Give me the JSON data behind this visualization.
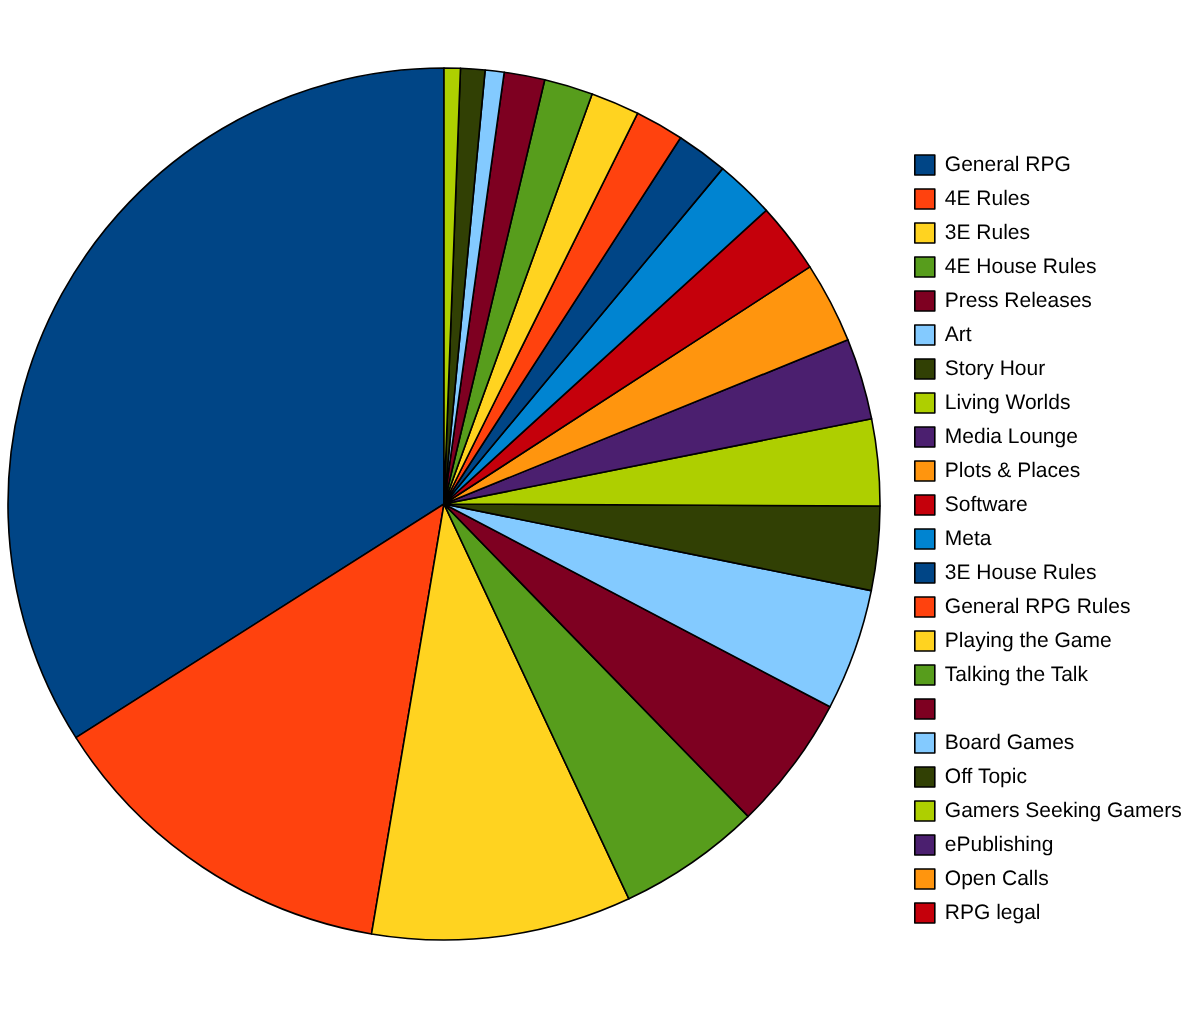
{
  "chart_data": {
    "type": "pie",
    "categories": [
      "General RPG",
      "4E Rules",
      "3E Rules",
      "4E House Rules",
      "Press Releases",
      "Art",
      "Story Hour",
      "Living Worlds",
      "Media Lounge",
      "Plots & Places",
      "Software",
      "Meta",
      "3E House Rules",
      "General RPG Rules",
      "Playing the Game",
      "Talking the Talk",
      null,
      "Board Games",
      "Off Topic",
      "Gamers Seeking Gamers",
      "ePublishing",
      "Open Calls",
      "RPG legal"
    ],
    "values": [
      33.9,
      13.3,
      9.6,
      5.3,
      5.0,
      4.5,
      3.1,
      3.2,
      3.0,
      3.0,
      2.6,
      2.2,
      1.9,
      1.8,
      1.8,
      1.8,
      1.5,
      0.7,
      0.9,
      0.6,
      null,
      null,
      null
    ],
    "colors": [
      "#004586",
      "#ff420e",
      "#ffd320",
      "#579d1c",
      "#7e0021",
      "#83caff",
      "#314004",
      "#aecf00",
      "#4b1f6f",
      "#ff950e",
      "#c5000b",
      "#0084d1",
      "#004586",
      "#ff420e",
      "#ffd320",
      "#579d1c",
      "#7e0021",
      "#83caff",
      "#314004",
      "#aecf00",
      "#4b1f6f",
      "#ff950e",
      "#c5000b"
    ],
    "legend": "right"
  }
}
